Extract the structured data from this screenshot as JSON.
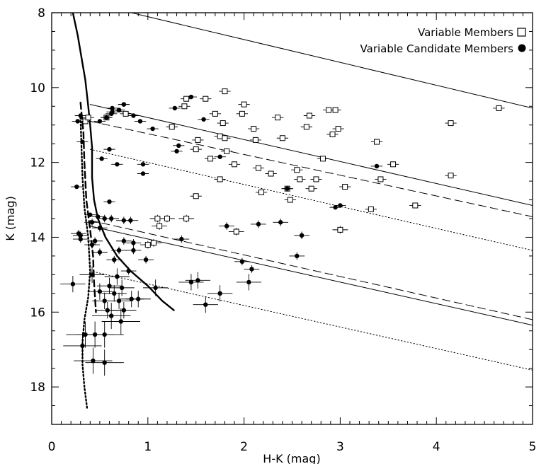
{
  "chart_data": {
    "type": "scatter",
    "title": "",
    "xlabel": "H-K (mag)",
    "ylabel": "K (mag)",
    "xlim": [
      0,
      5
    ],
    "ylim": [
      19,
      8
    ],
    "y_inverted": true,
    "grid": false,
    "legend_position": "top-right",
    "x_ticks": [
      "0",
      "1",
      "2",
      "3",
      "4",
      "5"
    ],
    "x_tick_values": [
      0,
      1,
      2,
      3,
      4,
      5
    ],
    "y_ticks": [
      "8",
      "10",
      "12",
      "14",
      "16",
      "18"
    ],
    "y_tick_values": [
      8,
      10,
      12,
      14,
      16,
      18
    ],
    "legend": [
      {
        "label": "Variable Members",
        "marker": "open-square"
      },
      {
        "label": "Variable Candidate Members",
        "marker": "filled-circle"
      }
    ],
    "series": [
      {
        "name": "Variable Members",
        "marker": "open-square",
        "points": [
          [
            0.35,
            10.9
          ],
          [
            0.38,
            10.8
          ],
          [
            0.57,
            10.8
          ],
          [
            0.77,
            10.7
          ],
          [
            1.0,
            14.2
          ],
          [
            1.06,
            14.15
          ],
          [
            1.1,
            13.5
          ],
          [
            1.12,
            13.7
          ],
          [
            1.2,
            13.5
          ],
          [
            1.25,
            11.05
          ],
          [
            1.38,
            10.5
          ],
          [
            1.4,
            10.3
          ],
          [
            1.4,
            13.5
          ],
          [
            1.5,
            11.65
          ],
          [
            1.5,
            12.9
          ],
          [
            1.52,
            11.4
          ],
          [
            1.6,
            10.3
          ],
          [
            1.65,
            11.9
          ],
          [
            1.7,
            10.7
          ],
          [
            1.75,
            11.3
          ],
          [
            1.75,
            12.45
          ],
          [
            1.78,
            10.95
          ],
          [
            1.8,
            10.1
          ],
          [
            1.8,
            11.35
          ],
          [
            1.82,
            11.7
          ],
          [
            1.9,
            12.05
          ],
          [
            1.92,
            13.85
          ],
          [
            1.98,
            10.7
          ],
          [
            2.0,
            10.45
          ],
          [
            2.1,
            11.1
          ],
          [
            2.12,
            11.4
          ],
          [
            2.15,
            12.15
          ],
          [
            2.18,
            12.8
          ],
          [
            2.28,
            12.3
          ],
          [
            2.35,
            10.8
          ],
          [
            2.4,
            11.35
          ],
          [
            2.45,
            12.7
          ],
          [
            2.48,
            13.0
          ],
          [
            2.55,
            12.2
          ],
          [
            2.58,
            12.45
          ],
          [
            2.65,
            11.05
          ],
          [
            2.68,
            10.75
          ],
          [
            2.7,
            12.7
          ],
          [
            2.75,
            12.45
          ],
          [
            2.82,
            11.9
          ],
          [
            2.88,
            10.6
          ],
          [
            2.92,
            11.25
          ],
          [
            2.95,
            10.6
          ],
          [
            2.98,
            11.1
          ],
          [
            3.0,
            13.8
          ],
          [
            3.05,
            12.65
          ],
          [
            3.32,
            13.25
          ],
          [
            3.38,
            11.45
          ],
          [
            3.42,
            12.45
          ],
          [
            3.55,
            12.05
          ],
          [
            3.78,
            13.15
          ],
          [
            4.15,
            10.95
          ],
          [
            4.15,
            12.35
          ],
          [
            4.65,
            10.55
          ]
        ]
      },
      {
        "name": "Variable Candidate Members",
        "marker": "filled-circle",
        "points": [
          [
            0.22,
            15.25
          ],
          [
            0.26,
            12.65
          ],
          [
            0.27,
            10.9
          ],
          [
            0.28,
            13.9
          ],
          [
            0.3,
            13.95
          ],
          [
            0.3,
            14.05
          ],
          [
            0.3,
            10.75
          ],
          [
            0.32,
            11.45
          ],
          [
            0.32,
            16.9
          ],
          [
            0.35,
            16.6
          ],
          [
            0.4,
            13.4
          ],
          [
            0.42,
            14.2
          ],
          [
            0.42,
            13.6
          ],
          [
            0.42,
            15.0
          ],
          [
            0.43,
            17.3
          ],
          [
            0.45,
            16.6
          ],
          [
            0.45,
            14.1
          ],
          [
            0.48,
            13.45
          ],
          [
            0.5,
            13.75
          ],
          [
            0.5,
            14.4
          ],
          [
            0.5,
            15.45
          ],
          [
            0.5,
            10.9
          ],
          [
            0.52,
            11.9
          ],
          [
            0.55,
            16.6
          ],
          [
            0.55,
            17.35
          ],
          [
            0.55,
            15.7
          ],
          [
            0.55,
            13.5
          ],
          [
            0.57,
            10.8
          ],
          [
            0.58,
            15.95
          ],
          [
            0.6,
            13.05
          ],
          [
            0.6,
            11.65
          ],
          [
            0.6,
            15.3
          ],
          [
            0.62,
            13.5
          ],
          [
            0.62,
            16.1
          ],
          [
            0.62,
            10.7
          ],
          [
            0.63,
            10.55
          ],
          [
            0.63,
            10.65
          ],
          [
            0.65,
            14.6
          ],
          [
            0.65,
            15.5
          ],
          [
            0.68,
            15.05
          ],
          [
            0.68,
            12.05
          ],
          [
            0.7,
            14.35
          ],
          [
            0.7,
            15.7
          ],
          [
            0.7,
            10.6
          ],
          [
            0.7,
            10.6
          ],
          [
            0.72,
            16.25
          ],
          [
            0.73,
            15.35
          ],
          [
            0.75,
            14.1
          ],
          [
            0.75,
            15.95
          ],
          [
            0.75,
            10.45
          ],
          [
            0.75,
            10.45
          ],
          [
            0.75,
            13.55
          ],
          [
            0.8,
            14.9
          ],
          [
            0.82,
            13.55
          ],
          [
            0.83,
            15.65
          ],
          [
            0.85,
            14.15
          ],
          [
            0.85,
            14.35
          ],
          [
            0.85,
            10.75
          ],
          [
            0.9,
            15.65
          ],
          [
            0.92,
            10.9
          ],
          [
            0.95,
            12.05
          ],
          [
            0.95,
            12.3
          ],
          [
            0.98,
            14.6
          ],
          [
            1.05,
            11.1
          ],
          [
            1.08,
            15.35
          ],
          [
            1.28,
            10.55
          ],
          [
            1.3,
            11.7
          ],
          [
            1.32,
            11.55
          ],
          [
            1.35,
            14.05
          ],
          [
            1.45,
            10.25
          ],
          [
            1.45,
            15.2
          ],
          [
            1.52,
            15.15
          ],
          [
            1.58,
            10.85
          ],
          [
            1.6,
            15.8
          ],
          [
            1.75,
            11.85
          ],
          [
            1.75,
            15.5
          ],
          [
            1.82,
            13.7
          ],
          [
            1.98,
            14.65
          ],
          [
            2.05,
            15.2
          ],
          [
            2.08,
            14.85
          ],
          [
            2.15,
            13.65
          ],
          [
            2.38,
            13.6
          ],
          [
            2.45,
            12.7
          ],
          [
            2.55,
            14.5
          ],
          [
            2.6,
            13.95
          ],
          [
            2.95,
            13.2
          ],
          [
            3.0,
            13.15
          ],
          [
            3.38,
            12.1
          ]
        ]
      }
    ],
    "curves": [
      {
        "name": "isochrone-solid",
        "style": "solid-thick",
        "points": [
          [
            0.22,
            8.0
          ],
          [
            0.27,
            8.6
          ],
          [
            0.31,
            9.2
          ],
          [
            0.35,
            9.8
          ],
          [
            0.38,
            10.5
          ],
          [
            0.4,
            11.0
          ],
          [
            0.42,
            11.6
          ],
          [
            0.42,
            12.4
          ],
          [
            0.44,
            13.0
          ],
          [
            0.48,
            13.5
          ],
          [
            0.56,
            14.0
          ],
          [
            0.68,
            14.5
          ],
          [
            0.82,
            14.9
          ],
          [
            1.0,
            15.3
          ],
          [
            1.15,
            15.7
          ],
          [
            1.27,
            15.95
          ]
        ]
      },
      {
        "name": "isochrone-dashed",
        "style": "dashed-thick",
        "points": [
          [
            0.3,
            10.4
          ],
          [
            0.33,
            11.2
          ],
          [
            0.34,
            12.0
          ],
          [
            0.36,
            13.0
          ],
          [
            0.4,
            13.8
          ],
          [
            0.43,
            14.5
          ],
          [
            0.44,
            15.2
          ],
          [
            0.46,
            16.0
          ]
        ]
      },
      {
        "name": "isochrone-dotted",
        "style": "dotted-thick",
        "points": [
          [
            0.3,
            10.8
          ],
          [
            0.31,
            11.6
          ],
          [
            0.32,
            12.4
          ],
          [
            0.34,
            13.2
          ],
          [
            0.38,
            14.0
          ],
          [
            0.4,
            14.9
          ],
          [
            0.38,
            15.6
          ],
          [
            0.34,
            16.2
          ],
          [
            0.32,
            16.8
          ],
          [
            0.32,
            17.4
          ],
          [
            0.34,
            18.0
          ],
          [
            0.37,
            18.6
          ]
        ]
      },
      {
        "name": "reddening-line-1",
        "style": "solid",
        "points": [
          [
            0.5,
            7.8
          ],
          [
            5.0,
            10.55
          ]
        ]
      },
      {
        "name": "reddening-line-2",
        "style": "solid",
        "points": [
          [
            0.4,
            10.45
          ],
          [
            5.0,
            13.15
          ]
        ]
      },
      {
        "name": "reddening-line-3",
        "style": "dashed",
        "points": [
          [
            0.4,
            10.9
          ],
          [
            5.0,
            13.45
          ]
        ]
      },
      {
        "name": "reddening-line-4",
        "style": "dotted",
        "points": [
          [
            0.4,
            11.65
          ],
          [
            5.0,
            14.35
          ]
        ]
      },
      {
        "name": "reddening-line-5",
        "style": "solid",
        "points": [
          [
            0.4,
            13.7
          ],
          [
            5.0,
            16.35
          ]
        ]
      },
      {
        "name": "reddening-line-6",
        "style": "dashed",
        "points": [
          [
            0.4,
            13.55
          ],
          [
            5.0,
            16.2
          ]
        ]
      },
      {
        "name": "reddening-line-7",
        "style": "dotted",
        "points": [
          [
            0.4,
            14.9
          ],
          [
            5.0,
            17.55
          ]
        ]
      }
    ]
  }
}
